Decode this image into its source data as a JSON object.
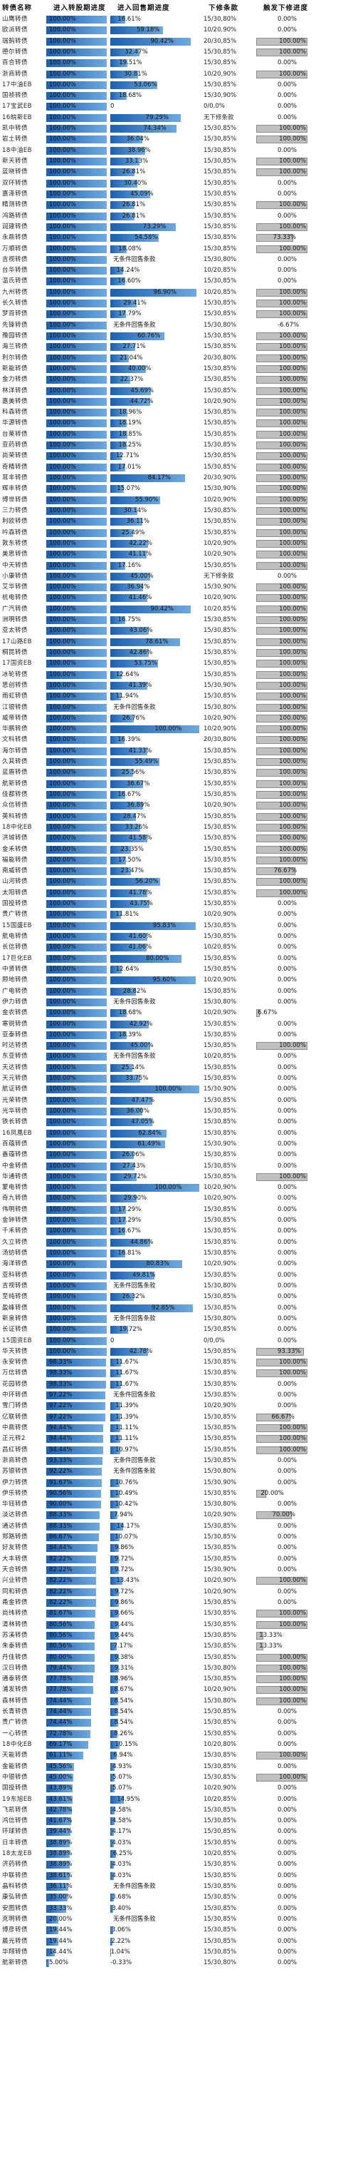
{
  "headers": [
    "转债名称",
    "进入转股期进度",
    "进入回售期进度",
    "下修条款",
    "触发下修进度"
  ],
  "chart_data": {
    "type": "table",
    "columns": [
      "转债名称",
      "进入转股期进度",
      "进入回售期进度",
      "下修条款",
      "触发下修进度"
    ],
    "rows": [
      [
        "山鹰转债",
        "100.00%",
        "16.61%",
        "15/30,80%",
        "0.00%"
      ],
      [
        "欧派转债",
        "100.00%",
        "59.18%",
        "10/20,90%",
        "0.00%"
      ],
      [
        "瑞鹄转债",
        "100.00%",
        "90.42%",
        "20/30,85%",
        "100.00%"
      ],
      [
        "德尔转债",
        "100.00%",
        "32.47%",
        "15/30,85%",
        "100.00%"
      ],
      [
        "百合转债",
        "100.00%",
        "19.51%",
        "15/30,85%",
        "0.00%"
      ],
      [
        "浙商转债",
        "100.00%",
        "30.81%",
        "10/20,90%",
        "100.00%"
      ],
      [
        "17中油EB",
        "100.00%",
        "53.06%",
        "15/30,85%",
        "0.00%"
      ],
      [
        "国祯转债",
        "100.00%",
        "18.68%",
        "15/30,90%",
        "0.00%"
      ],
      [
        "17宝武EB",
        "100.00%",
        "0",
        "0/0,0%",
        "0.00%"
      ],
      [
        "16皖新EB",
        "100.00%",
        "79.29%",
        "无下修条款",
        "0.00%"
      ],
      [
        "凯中转债",
        "100.00%",
        "74.34%",
        "15/30,85%",
        "100.00%"
      ],
      [
        "岩土转债",
        "100.00%",
        "36.04%",
        "15/30,85%",
        "100.00%"
      ],
      [
        "18中油EB",
        "100.00%",
        "38.96%",
        "15/30,85%",
        "0.00%"
      ],
      [
        "新天转债",
        "100.00%",
        "33.13%",
        "15/30,85%",
        "100.00%"
      ],
      [
        "蓝晓转债",
        "100.00%",
        "26.81%",
        "15/30,85%",
        "100.00%"
      ],
      [
        "双环转债",
        "100.00%",
        "30.40%",
        "15/30,85%",
        "0.00%"
      ],
      [
        "嘉泽转债",
        "100.00%",
        "45.09%",
        "15/30,85%",
        "0.00%"
      ],
      [
        "精测转债",
        "100.00%",
        "26.81%",
        "15/30,85%",
        "100.00%"
      ],
      [
        "鸿路转债",
        "100.00%",
        "26.81%",
        "15/30,85%",
        "0.00%"
      ],
      [
        "润建转债",
        "100.00%",
        "73.29%",
        "15/30,85%",
        "100.00%"
      ],
      [
        "永鼎转债",
        "100.00%",
        "54.58%",
        "15/30,85%",
        "73.33%"
      ],
      [
        "万顺转债",
        "100.00%",
        "18.08%",
        "15/30,85%",
        "100.00%"
      ],
      [
        "吉视转债",
        "100.00%",
        "无条件回售条款",
        "15/30,80%",
        "0.00%"
      ],
      [
        "台华转债",
        "100.00%",
        "14.24%",
        "10/20,85%",
        "0.00%"
      ],
      [
        "温氏转债",
        "100.00%",
        "16.60%",
        "15/30,85%",
        "0.00%"
      ],
      [
        "九州转债",
        "100.00%",
        "96.90%",
        "10/20,85%",
        "100.00%"
      ],
      [
        "长久转债",
        "100.00%",
        "29.41%",
        "15/30,85%",
        "100.00%"
      ],
      [
        "梦百转债",
        "100.00%",
        "17.79%",
        "15/30,85%",
        "100.00%"
      ],
      [
        "先锋转债",
        "100.00%",
        "无条件回售条款",
        "15/30,80%",
        "-6.67%"
      ],
      [
        "豫园转债",
        "100.00%",
        "60.76%",
        "15/30,85%",
        "100.00%"
      ],
      [
        "海兰转债",
        "100.00%",
        "27.71%",
        "15/30,85%",
        "100.00%"
      ],
      [
        "利尔转债",
        "100.00%",
        "21.04%",
        "20/30,80%",
        "100.00%"
      ],
      [
        "新能转债",
        "100.00%",
        "40.00%",
        "15/30,85%",
        "100.00%"
      ],
      [
        "金力转债",
        "100.00%",
        "22.37%",
        "15/30,85%",
        "100.00%"
      ],
      [
        "林洋转债",
        "100.00%",
        "45.69%",
        "15/30,85%",
        "100.00%"
      ],
      [
        "嘉美转债",
        "100.00%",
        "44.72%",
        "10/20,90%",
        "100.00%"
      ],
      [
        "科森转债",
        "100.00%",
        "18.96%",
        "15/30,85%",
        "100.00%"
      ],
      [
        "华源转债",
        "100.00%",
        "18.19%",
        "15/30,85%",
        "100.00%"
      ],
      [
        "台莱转债",
        "100.00%",
        "18.85%",
        "15/30,85%",
        "100.00%"
      ],
      [
        "亚药转债",
        "100.00%",
        "18.25%",
        "15/30,85%",
        "100.00%"
      ],
      [
        "尚荣转债",
        "100.00%",
        "12.71%",
        "15/30,85%",
        "100.00%"
      ],
      [
        "奇精转债",
        "100.00%",
        "17.01%",
        "15/30,85%",
        "100.00%"
      ],
      [
        "耳丰转债",
        "100.00%",
        "84.17%",
        "20/30,90%",
        "100.00%"
      ],
      [
        "辉丰转债",
        "100.00%",
        "15.07%",
        "15/30,90%",
        "100.00%"
      ],
      [
        "博世转债",
        "100.00%",
        "55.90%",
        "10/20,90%",
        "100.00%"
      ],
      [
        "三力转债",
        "100.00%",
        "30.14%",
        "15/30,85%",
        "100.00%"
      ],
      [
        "利欧转债",
        "100.00%",
        "36.11%",
        "15/30,85%",
        "100.00%"
      ],
      [
        "吟森转债",
        "100.00%",
        "25.49%",
        "15/30,85%",
        "100.00%"
      ],
      [
        "敦东转债",
        "100.00%",
        "42.22%",
        "10/20,90%",
        "100.00%"
      ],
      [
        "美思转债",
        "100.00%",
        "41.11%",
        "10/20,90%",
        "100.00%"
      ],
      [
        "中天转债",
        "100.00%",
        "17.16%",
        "15/30,85%",
        "100.00%"
      ],
      [
        "小康转债",
        "100.00%",
        "45.00%",
        "无下修条款",
        "0.00%"
      ],
      [
        "艾华转债",
        "100.00%",
        "36.94%",
        "15/30,90%",
        "100.00%"
      ],
      [
        "杭电转债",
        "100.00%",
        "41.46%",
        "10/20,90%",
        "100.00%"
      ],
      [
        "广汽转债",
        "100.00%",
        "90.42%",
        "10/20,85%",
        "100.00%"
      ],
      [
        "洲明转债",
        "100.00%",
        "16.75%",
        "15/30,85%",
        "100.00%"
      ],
      [
        "亚太转债",
        "100.00%",
        "43.06%",
        "15/30,85%",
        "100.00%"
      ],
      [
        "17山路EB",
        "100.00%",
        "78.61%",
        "15/30,85%",
        "100.00%"
      ],
      [
        "桐昆转债",
        "100.00%",
        "42.86%",
        "15/30,85%",
        "100.00%"
      ],
      [
        "17国资EB",
        "100.00%",
        "53.75%",
        "15/30,85%",
        "100.00%"
      ],
      [
        "冰轮转债",
        "100.00%",
        "12.64%",
        "15/30,85%",
        "100.00%"
      ],
      [
        "思创转债",
        "100.00%",
        "41.39%",
        "15/30,90%",
        "100.00%"
      ],
      [
        "雨虹转债",
        "100.00%",
        "11.94%",
        "15/30,85%",
        "100.00%"
      ],
      [
        "江银转债",
        "100.00%",
        "无条件回售条款",
        "15/30,80%",
        "100.00%"
      ],
      [
        "威帝转债",
        "100.00%",
        "26.76%",
        "10/20,90%",
        "100.00%"
      ],
      [
        "华鹏转债",
        "100.00%",
        "100.00%",
        "10/20,90%",
        "100.00%"
      ],
      [
        "文科转债",
        "100.00%",
        "16.39%",
        "20/30,80%",
        "100.00%"
      ],
      [
        "海尔转债",
        "100.00%",
        "41.33%",
        "15/30,85%",
        "100.00%"
      ],
      [
        "久其转债",
        "100.00%",
        "55.49%",
        "15/30,85%",
        "100.00%"
      ],
      [
        "蓝盾转债",
        "100.00%",
        "25.56%",
        "15/30,85%",
        "100.00%"
      ],
      [
        "航新转债",
        "100.00%",
        "36.67%",
        "15/30,85%",
        "100.00%"
      ],
      [
        "佳都转债",
        "100.00%",
        "16.67%",
        "15/30,85%",
        "100.00%"
      ],
      [
        "众信转债",
        "100.00%",
        "36.89%",
        "10/20,90%",
        "100.00%"
      ],
      [
        "英科转债",
        "100.00%",
        "28.47%",
        "15/30,85%",
        "100.00%"
      ],
      [
        "18中化EB",
        "100.00%",
        "33.26%",
        "15/30,85%",
        "100.00%"
      ],
      [
        "洪城转债",
        "100.00%",
        "41.58%",
        "15/30,85%",
        "100.00%"
      ],
      [
        "金禾转债",
        "100.00%",
        "23.35%",
        "15/30,85%",
        "100.00%"
      ],
      [
        "福能转债",
        "100.00%",
        "17.50%",
        "15/30,85%",
        "100.00%"
      ],
      [
        "南威转债",
        "100.00%",
        "23.47%",
        "15/30,85%",
        "76.67%"
      ],
      [
        "山河转债",
        "100.00%",
        "56.20%",
        "15/30,85%",
        "100.00%"
      ],
      [
        "太阳转债",
        "100.00%",
        "41.78%",
        "15/30,85%",
        "100.00%"
      ],
      [
        "国投转债",
        "100.00%",
        "43.75%",
        "15/30,85%",
        "0.00%"
      ],
      [
        "贵广转债",
        "100.00%",
        "11.81%",
        "10/20,90%",
        "0.00%"
      ],
      [
        "15国盛EB",
        "100.00%",
        "95.83%",
        "15/30,85%",
        "0.00%"
      ],
      [
        "航电转债",
        "100.00%",
        "41.60%",
        "15/30,85%",
        "0.00%"
      ],
      [
        "长信转债",
        "100.00%",
        "41.06%",
        "10/20,85%",
        "0.00%"
      ],
      [
        "17巨化EB",
        "100.00%",
        "80.00%",
        "15/30,85%",
        "0.00%"
      ],
      [
        "中贤转债",
        "100.00%",
        "12.64%",
        "15/30,85%",
        "0.00%"
      ],
      [
        "顾地转债",
        "100.00%",
        "95.60%",
        "10/20,90%",
        "0.00%"
      ],
      [
        "广电转债",
        "100.00%",
        "28.82%",
        "15/30,85%",
        "0.00%"
      ],
      [
        "伊力转债",
        "100.00%",
        "无条件回售条款",
        "15/30,80%",
        "0.00%"
      ],
      [
        "金农转债",
        "100.00%",
        "18.68%",
        "10/20,90%",
        "6.67%"
      ],
      [
        "寒锐转债",
        "100.00%",
        "42.92%",
        "15/30,85%",
        "0.00%"
      ],
      [
        "亚泰转债",
        "100.00%",
        "18.39%",
        "15/30,85%",
        "0.00%"
      ],
      [
        "时达转债",
        "100.00%",
        "45.00%",
        "15/30,85%",
        "100.00%"
      ],
      [
        "东亚转债",
        "100.00%",
        "无条件回售条款",
        "10/20,85%",
        "0.00%"
      ],
      [
        "天达转债",
        "100.00%",
        "25.14%",
        "15/30,85%",
        "0.00%"
      ],
      [
        "天元转债",
        "100.00%",
        "33.75%",
        "15/30,85%",
        "0.00%"
      ],
      [
        "航证转债",
        "100.00%",
        "100.00%",
        "15/30,90%",
        "0.00%"
      ],
      [
        "光荣转债",
        "100.00%",
        "47.47%",
        "15/30,85%",
        "0.00%"
      ],
      [
        "光华转债",
        "100.00%",
        "36.00%",
        "15/30,85%",
        "0.00%"
      ],
      [
        "铁长转债",
        "100.00%",
        "47.05%",
        "15/30,85%",
        "0.00%"
      ],
      [
        "16凤凰EB",
        "100.00%",
        "62.84%",
        "15/30,85%",
        "0.00%"
      ],
      [
        "百蕴转债",
        "100.00%",
        "61.49%",
        "15/30,90%",
        "0.00%"
      ],
      [
        "鑫蕴转债",
        "100.00%",
        "26.06%",
        "15/30,85%",
        "0.00%"
      ],
      [
        "中金转债",
        "100.00%",
        "27.43%",
        "15/30,85%",
        "0.00%"
      ],
      [
        "华通转债",
        "100.00%",
        "29.72%",
        "15/30,85%",
        "100.00%"
      ],
      [
        "蒙电转债",
        "100.00%",
        "100.00%",
        "10/20,90%",
        "0.00%"
      ],
      [
        "奇九转债",
        "100.00%",
        "29.90%",
        "10/20,90%",
        "0.00%"
      ],
      [
        "伟明转债",
        "100.00%",
        "17.29%",
        "15/30,85%",
        "0.00%"
      ],
      [
        "金钟转债",
        "100.00%",
        "17.29%",
        "15/30,85%",
        "0.00%"
      ],
      [
        "千禾转债",
        "100.00%",
        "16.67%",
        "15/30,85%",
        "0.00%"
      ],
      [
        "久立转债",
        "100.00%",
        "44.86%",
        "15/30,85%",
        "0.00%"
      ],
      [
        "汤纺转债",
        "100.00%",
        "16.81%",
        "15/30,85%",
        "0.00%"
      ],
      [
        "海洋转债",
        "100.00%",
        "80.83%",
        "10/20,90%",
        "0.00%"
      ],
      [
        "亚科转债",
        "100.00%",
        "49.81%",
        "15/30,85%",
        "0.00%"
      ],
      [
        "吉视转债",
        "100.00%",
        "无条件回售条款",
        "15/30,80%",
        "0.00%"
      ],
      [
        "至纯转债",
        "100.00%",
        "26.32%",
        "15/30,85%",
        "0.00%"
      ],
      [
        "盈峰转债",
        "100.00%",
        "92.85%",
        "15/30,85%",
        "0.00%"
      ],
      [
        "新泉转债",
        "100.00%",
        "无条件回售条款",
        "15/30,80%",
        "0.00%"
      ],
      [
        "长证转债",
        "100.00%",
        "19.72%",
        "15/30,85%",
        "0.00%"
      ],
      [
        "15国资EB",
        "100.00%",
        "0",
        "0/0,0%",
        "0.00%"
      ],
      [
        "华天转债",
        "100.00%",
        "42.78%",
        "15/30,85%",
        "93.33%"
      ],
      [
        "永安转债",
        "98.33%",
        "11.67%",
        "15/30,85%",
        "100.00%"
      ],
      [
        "万信转债",
        "98.33%",
        "11.67%",
        "15/30,85%",
        "100.00%"
      ],
      [
        "花园转债",
        "98.33%",
        "11.67%",
        "15/30,85%",
        "0.00%"
      ],
      [
        "中环转债",
        "97.22%",
        "无条件回售条款",
        "15/30,85%",
        "0.00%"
      ],
      [
        "雪门转债",
        "97.22%",
        "11.39%",
        "10/20,90%",
        "0.00%"
      ],
      [
        "亿联转债",
        "97.22%",
        "11.39%",
        "15/30,85%",
        "66.67%"
      ],
      [
        "中鼎转债",
        "94.44%",
        "11.11%",
        "15/30,85%",
        "100.00%"
      ],
      [
        "正元转2",
        "94.44%",
        "11.11%",
        "15/30,85%",
        "100.00%"
      ],
      [
        "昌红转债",
        "94.44%",
        "10.97%",
        "15/30,85%",
        "100.00%"
      ],
      [
        "浙商转债",
        "93.33%",
        "无条件回售条款",
        "15/30,85%",
        "0.00%"
      ],
      [
        "苏银转债",
        "92.22%",
        "无条件回售条款",
        "15/30,80%",
        "0.00%"
      ],
      [
        "伊力转债",
        "91.67%",
        "10.76%",
        "15/30,90%",
        "0.00%"
      ],
      [
        "伊乐转债",
        "90.56%",
        "10.49%",
        "15/30,85%",
        "20.00%"
      ],
      [
        "华钰转债",
        "90.00%",
        "10.42%",
        "15/30,80%",
        "0.00%"
      ],
      [
        "淡达转债",
        "88.33%",
        "7.94%",
        "10/20,90%",
        "70.00%"
      ],
      [
        "通达转债",
        "88.33%",
        "14.17%",
        "15/30,85%",
        "0.00%"
      ],
      [
        "郑路转债",
        "86.67%",
        "10.07%",
        "15/30,85%",
        "0.00%"
      ],
      [
        "好友转债",
        "84.44%",
        "9.86%",
        "15/30,85%",
        "0.00%"
      ],
      [
        "大丰转债",
        "82.22%",
        "9.72%",
        "15/30,85%",
        "0.00%"
      ],
      [
        "天合转债",
        "82.22%",
        "9.72%",
        "15/30,90%",
        "0.00%"
      ],
      [
        "兴业转债",
        "82.22%",
        "13.43%",
        "10/20,90%",
        "100.00%"
      ],
      [
        "同和转债",
        "82.22%",
        "9.72%",
        "10/20,90%",
        "0.00%"
      ],
      [
        "甬金转债",
        "82.22%",
        "9.86%",
        "15/30,85%",
        "0.00%"
      ],
      [
        "尚纬转债",
        "81.67%",
        "9.66%",
        "15/30,85%",
        "100.00%"
      ],
      [
        "清林转债",
        "80.56%",
        "9.44%",
        "15/30,85%",
        "100.00%"
      ],
      [
        "苏溪转债",
        "80.56%",
        "9.44%",
        "15/30,85%",
        "13.33%"
      ],
      [
        "朱泰转债",
        "80.56%",
        "7.17%",
        "15/30,85%",
        "13.33%"
      ],
      [
        "丹佳转债",
        "80.00%",
        "9.38%",
        "15/30,85%",
        "100.00%"
      ],
      [
        "汉日转债",
        "79.44%",
        "9.31%",
        "15/30,80%",
        "100.00%"
      ],
      [
        "通泰转债",
        "77.78%",
        "8.96%",
        "15/30,85%",
        "100.00%"
      ],
      [
        "浦发转债",
        "77.78%",
        "8.67%",
        "10/20,90%",
        "100.00%"
      ],
      [
        "森林转债",
        "74.44%",
        "8.54%",
        "15/30,80%",
        "100.00%"
      ],
      [
        "长青转债",
        "74.44%",
        "8.54%",
        "15/30,85%",
        "0.00%"
      ],
      [
        "贵广转债",
        "74.44%",
        "8.54%",
        "15/30,85%",
        "0.00%"
      ],
      [
        "一心转债",
        "72.78%",
        "8.26%",
        "15/30,85%",
        "0.00%"
      ],
      [
        "18中化EB",
        "69.17%",
        "10.15%",
        "10/20,80%",
        "0.00%"
      ],
      [
        "天能转债",
        "61.11%",
        "6.94%",
        "15/30,85%",
        "100.00%"
      ],
      [
        "金能转债",
        "45.56%",
        "4.93%",
        "15/30,85%",
        "0.00%"
      ],
      [
        "中银转债",
        "45.00%",
        "5.07%",
        "15/30,85%",
        "100.00%"
      ],
      [
        "国投转债",
        "43.89%",
        "5.07%",
        "10/20,90%",
        "0.00%"
      ],
      [
        "19东旭EB",
        "43.61%",
        "14.95%",
        "10/20,85%",
        "0.00%"
      ],
      [
        "飞凯转债",
        "42.78%",
        "4.58%",
        "15/30,85%",
        "0.00%"
      ],
      [
        "鸿信转债",
        "41.67%",
        "4.58%",
        "15/30,85%",
        "0.00%"
      ],
      [
        "环球转债",
        "39.44%",
        "4.17%",
        "15/30,85%",
        "0.00%"
      ],
      [
        "日丰转债",
        "38.89%",
        "4.03%",
        "15/30,85%",
        "0.00%"
      ],
      [
        "18太龙EB",
        "38.89%",
        "6.25%",
        "10/20,85%",
        "0.00%"
      ],
      [
        "济药转债",
        "38.89%",
        "4.03%",
        "15/30,85%",
        "0.00%"
      ],
      [
        "中联转债",
        "38.61%",
        "4.03%",
        "15/30,85%",
        "0.00%"
      ],
      [
        "晶科转债",
        "36.11%",
        "无条件回售条款",
        "15/30,85%",
        "0.00%"
      ],
      [
        "康弘转债",
        "35.00%",
        "3.68%",
        "15/30,85%",
        "0.00%"
      ],
      [
        "安图转债",
        "33.33%",
        "3.40%",
        "15/30,85%",
        "0.00%"
      ],
      [
        "克明转债",
        "20.00%",
        "无条件回售条款",
        "15/30,85%",
        "0.00%"
      ],
      [
        "博彦转债",
        "19.44%",
        "3.06%",
        "15/30,85%",
        "0.00%"
      ],
      [
        "晨光转债",
        "19.44%",
        "2.22%",
        "15/30,85%",
        "0.00%"
      ],
      [
        "华翔转债",
        "14.44%",
        "1.04%",
        "15/30,85%",
        "0.00%"
      ],
      [
        "航新转债",
        "5.00%",
        "-0.33%",
        "15/30,80%",
        "0.00%"
      ]
    ]
  }
}
